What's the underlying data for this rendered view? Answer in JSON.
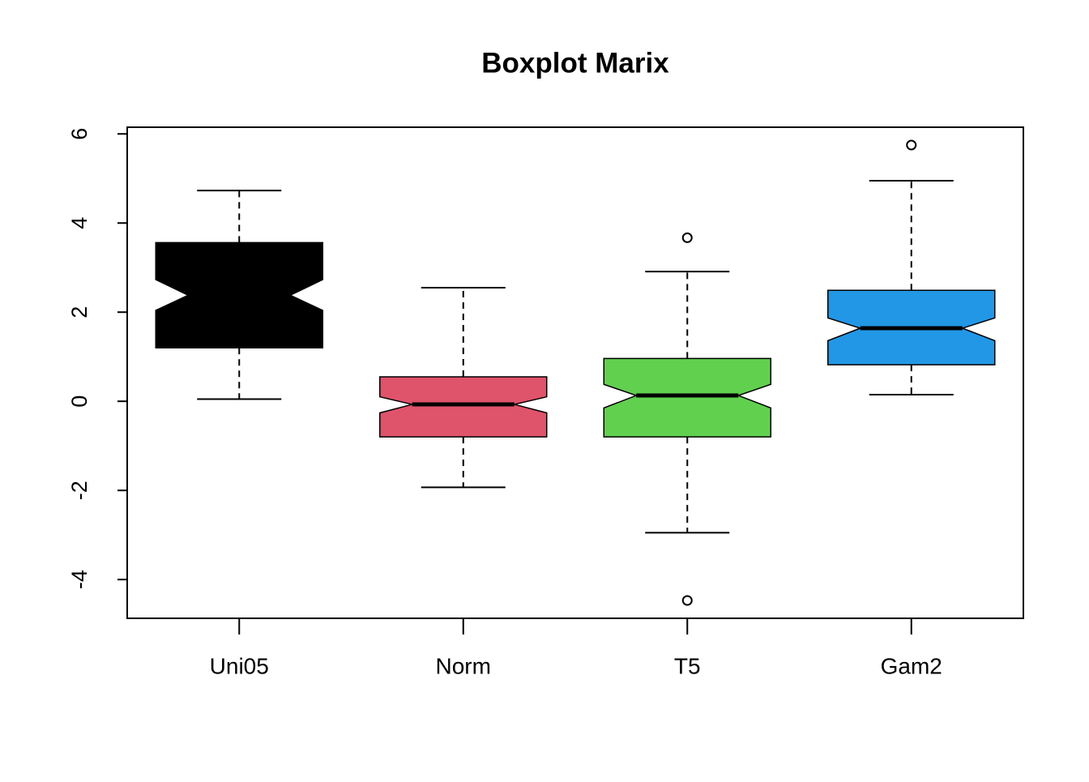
{
  "chart_data": {
    "type": "boxplot",
    "title": "Boxplot Marix",
    "categories": [
      "Uni05",
      "Norm",
      "T5",
      "Gam2"
    ],
    "boxes": [
      {
        "color": "#000000",
        "whisker_low": 0.05,
        "q1": 1.2,
        "median": 2.38,
        "q3": 3.56,
        "whisker_high": 4.73,
        "notch_low": 2.04,
        "notch_high": 2.73,
        "outliers": []
      },
      {
        "color": "#DF536B",
        "whisker_low": -1.93,
        "q1": -0.8,
        "median": -0.07,
        "q3": 0.55,
        "whisker_high": 2.55,
        "notch_low": -0.26,
        "notch_high": 0.1,
        "outliers": []
      },
      {
        "color": "#61D04F",
        "whisker_low": -2.95,
        "q1": -0.8,
        "median": 0.13,
        "q3": 0.96,
        "whisker_high": 2.91,
        "notch_low": -0.15,
        "notch_high": 0.38,
        "outliers": [
          3.67,
          -4.47
        ]
      },
      {
        "color": "#2297E6",
        "whisker_low": 0.15,
        "q1": 0.82,
        "median": 1.64,
        "q3": 2.49,
        "whisker_high": 4.95,
        "notch_low": 1.36,
        "notch_high": 1.87,
        "outliers": [
          5.75
        ]
      }
    ],
    "ylim": [
      -4.87,
      6.15
    ],
    "yticks": [
      -4,
      -2,
      0,
      2,
      4,
      6
    ]
  }
}
